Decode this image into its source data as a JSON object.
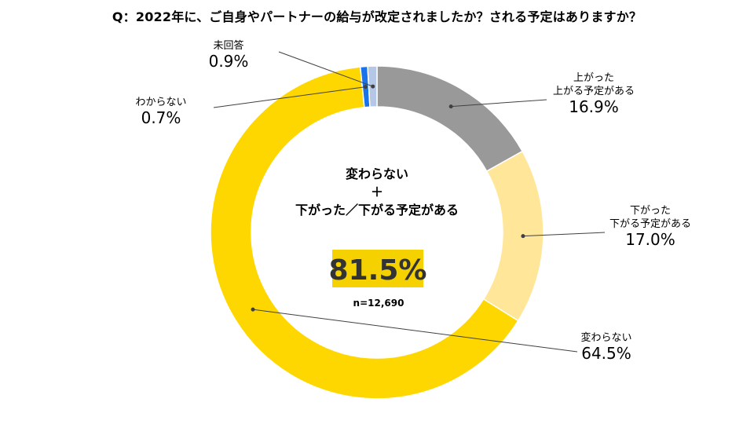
{
  "title": "Q：2022年に、ご自身やパートナーの給与が改定されましたか？される予定はありますか？",
  "center": {
    "line1": "変わらない",
    "line2": "＋",
    "line3": "下がった／下がる予定がある",
    "highlight": "81.5%",
    "highlight_bg": "#F5D100",
    "n_label": "n=12,690"
  },
  "chart_data": {
    "type": "pie",
    "donut": true,
    "slices": [
      {
        "label_lines": [
          "上がった",
          "上がる予定がある"
        ],
        "value": 16.9,
        "display": "16.9%",
        "color": "#999999"
      },
      {
        "label_lines": [
          "下がった",
          "下がる予定がある"
        ],
        "value": 17.0,
        "display": "17.0%",
        "color": "#FFE699"
      },
      {
        "label_lines": [
          "変わらない"
        ],
        "value": 64.5,
        "display": "64.5%",
        "color": "#FFD700"
      },
      {
        "label_lines": [
          "わからない"
        ],
        "value": 0.7,
        "display": "0.7%",
        "color": "#1A73E8"
      },
      {
        "label_lines": [
          "未回答"
        ],
        "value": 0.9,
        "display": "0.9%",
        "color": "#B4C7E7"
      }
    ]
  }
}
